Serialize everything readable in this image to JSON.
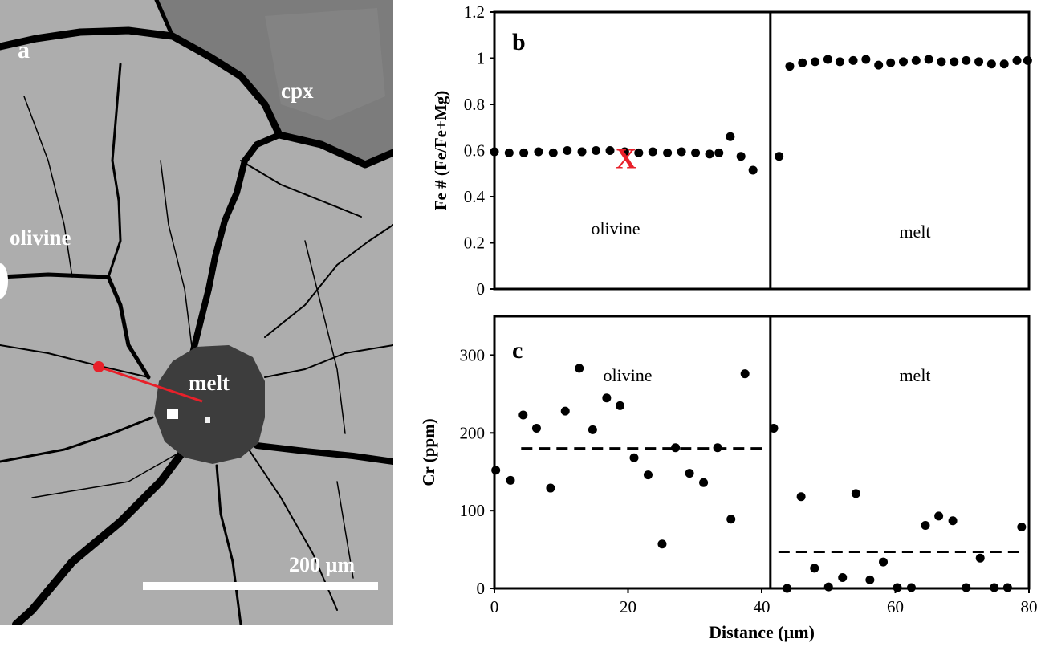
{
  "panel_a": {
    "letter": "a",
    "labels": {
      "cpx": "cpx",
      "olivine": "olivine",
      "melt": "melt"
    },
    "scale_bar": {
      "text": "200 µm",
      "length_um": 200
    },
    "colors": {
      "olivine": "#adadad",
      "cpx": "#7c7c7c",
      "melt": "#3d3d3d",
      "cracks": "#000000",
      "profile": "#e8202a"
    }
  },
  "chart_data": [
    {
      "type": "scatter",
      "panel": "b",
      "letter": "b",
      "xlim": [
        0,
        80
      ],
      "ylim": [
        0,
        1.2
      ],
      "xticks": [],
      "yticks": [
        0,
        0.2,
        0.4,
        0.6,
        0.8,
        1,
        1.2
      ],
      "ylabel": "Fe # (Fe/Fe+Mg)",
      "boundary_x": 41.3,
      "region_labels": [
        "olivine",
        "melt"
      ],
      "marker": {
        "text": "X",
        "x": 19.7,
        "y": 0.575,
        "color": "#e8202a"
      },
      "series": [
        {
          "x": [
            0,
            2.2,
            4.4,
            6.6,
            8.8,
            10.9,
            13.1,
            15.2,
            17.3,
            19.5,
            21.6,
            23.7,
            25.9,
            28,
            30.1,
            32.2,
            33.6,
            35.3,
            36.9,
            38.7,
            42.6
          ],
          "y": [
            0.595,
            0.59,
            0.59,
            0.595,
            0.59,
            0.6,
            0.595,
            0.6,
            0.6,
            0.595,
            0.59,
            0.595,
            0.59,
            0.595,
            0.59,
            0.585,
            0.59,
            0.66,
            0.575,
            0.515,
            0.575
          ]
        },
        {
          "x": [
            44.2,
            46.1,
            48,
            49.9,
            51.7,
            53.7,
            55.6,
            57.5,
            59.3,
            61.2,
            63.1,
            65,
            66.9,
            68.8,
            70.6,
            72.5,
            74.4,
            76.3,
            78.2,
            79.8
          ],
          "y": [
            0.965,
            0.98,
            0.985,
            0.995,
            0.985,
            0.99,
            0.995,
            0.97,
            0.98,
            0.985,
            0.99,
            0.995,
            0.985,
            0.985,
            0.99,
            0.985,
            0.975,
            0.975,
            0.99,
            0.99
          ]
        }
      ]
    },
    {
      "type": "scatter",
      "panel": "c",
      "letter": "c",
      "xlim": [
        0,
        80
      ],
      "ylim": [
        0,
        350
      ],
      "xticks": [
        0,
        20,
        40,
        60,
        80
      ],
      "yticks": [
        0,
        100,
        200,
        300
      ],
      "xlabel": "Distance (µm)",
      "ylabel": "Cr (ppm)",
      "boundary_x": 41.3,
      "region_labels": [
        "olivine",
        "melt"
      ],
      "mean_lines": [
        {
          "x0": 4,
          "x1": 40,
          "y": 180
        },
        {
          "x0": 42.5,
          "x1": 79.5,
          "y": 47
        }
      ],
      "series": [
        {
          "x": [
            0.2,
            2.4,
            4.3,
            6.3,
            8.4,
            10.6,
            12.7,
            14.7,
            16.8,
            18.8,
            20.9,
            23,
            25.1,
            27.1,
            29.2,
            31.3,
            33.4,
            35.4,
            37.5
          ],
          "y": [
            152,
            139,
            223,
            206,
            129,
            228,
            283,
            204,
            245,
            235,
            168,
            146,
            57,
            181,
            148,
            136,
            181,
            89,
            276
          ]
        },
        {
          "x": [
            41.8,
            43.8,
            45.9,
            47.9,
            50,
            52.1,
            54.1,
            56.2,
            58.2,
            60.3,
            62.4,
            64.5,
            66.5,
            68.6,
            70.6,
            72.7,
            74.8,
            76.8,
            78.9
          ],
          "y": [
            206,
            0,
            118,
            26,
            2,
            14,
            122,
            11,
            34,
            1,
            1,
            81,
            93,
            87,
            1,
            39,
            1,
            1,
            79
          ]
        }
      ]
    }
  ]
}
